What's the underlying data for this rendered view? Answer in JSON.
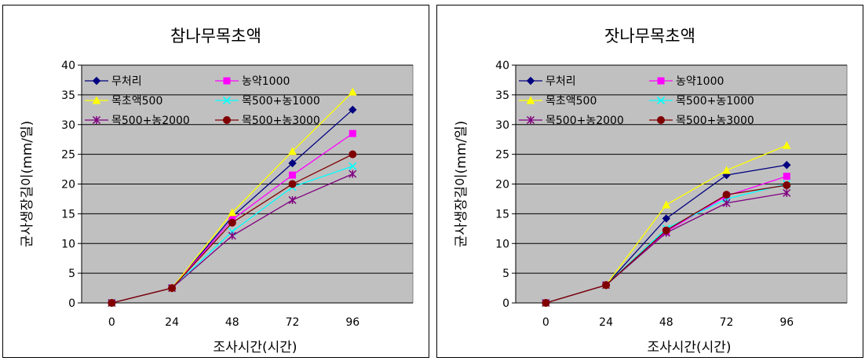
{
  "chart_data": [
    {
      "type": "line",
      "title": "참나무목초액",
      "xlabel": "조사시간(시간)",
      "ylabel": "균사생장길이(mm/일)",
      "categories": [
        "0",
        "24",
        "48",
        "72",
        "96"
      ],
      "ylim": [
        0,
        40
      ],
      "yticks": [
        0,
        5,
        10,
        15,
        20,
        25,
        30,
        35,
        40
      ],
      "grid": true,
      "plot_background": "#c0c0c0",
      "legend_position": "top-left-inside",
      "series": [
        {
          "name": "무처리",
          "color": "#000080",
          "marker": "diamond",
          "values": [
            0,
            2.5,
            14.5,
            23.5,
            32.5
          ]
        },
        {
          "name": "농약1000",
          "color": "#ff00ff",
          "marker": "square",
          "values": [
            0,
            2.5,
            14,
            21.5,
            28.5
          ]
        },
        {
          "name": "목초액500",
          "color": "#ffff00",
          "marker": "triangle",
          "values": [
            0,
            2.5,
            15.2,
            25.5,
            35.5
          ]
        },
        {
          "name": "목500+농1000",
          "color": "#00ffff",
          "marker": "x",
          "values": [
            0,
            2.5,
            12,
            19.5,
            23
          ]
        },
        {
          "name": "목500+농2000",
          "color": "#800080",
          "marker": "star",
          "values": [
            0,
            2.5,
            11.3,
            17.3,
            21.7
          ]
        },
        {
          "name": "목500+농3000",
          "color": "#800000",
          "marker": "circle",
          "values": [
            0,
            2.5,
            13.5,
            20,
            25
          ]
        }
      ]
    },
    {
      "type": "line",
      "title": "잣나무목초액",
      "xlabel": "조사시간(시간)",
      "ylabel": "균사생장길이(mm/일)",
      "categories": [
        "0",
        "24",
        "48",
        "72",
        "96"
      ],
      "ylim": [
        0,
        40
      ],
      "yticks": [
        0,
        5,
        10,
        15,
        20,
        25,
        30,
        35,
        40
      ],
      "grid": true,
      "plot_background": "#c0c0c0",
      "legend_position": "top-left-inside",
      "series": [
        {
          "name": "무처리",
          "color": "#000080",
          "marker": "diamond",
          "values": [
            0,
            3,
            14.2,
            21.5,
            23.2
          ]
        },
        {
          "name": "농약1000",
          "color": "#ff00ff",
          "marker": "square",
          "values": [
            0,
            3,
            12,
            18,
            21.3
          ]
        },
        {
          "name": "목초액500",
          "color": "#ffff00",
          "marker": "triangle",
          "values": [
            0,
            3,
            16.5,
            22.3,
            26.5
          ]
        },
        {
          "name": "목500+농1000",
          "color": "#00ffff",
          "marker": "x",
          "values": [
            0,
            3,
            12.5,
            17.5,
            20
          ]
        },
        {
          "name": "목500+농2000",
          "color": "#800080",
          "marker": "star",
          "values": [
            0,
            3,
            11.8,
            16.8,
            18.5
          ]
        },
        {
          "name": "목500+농3000",
          "color": "#800000",
          "marker": "circle",
          "values": [
            0,
            3,
            12.2,
            18.2,
            19.8
          ]
        }
      ]
    }
  ]
}
